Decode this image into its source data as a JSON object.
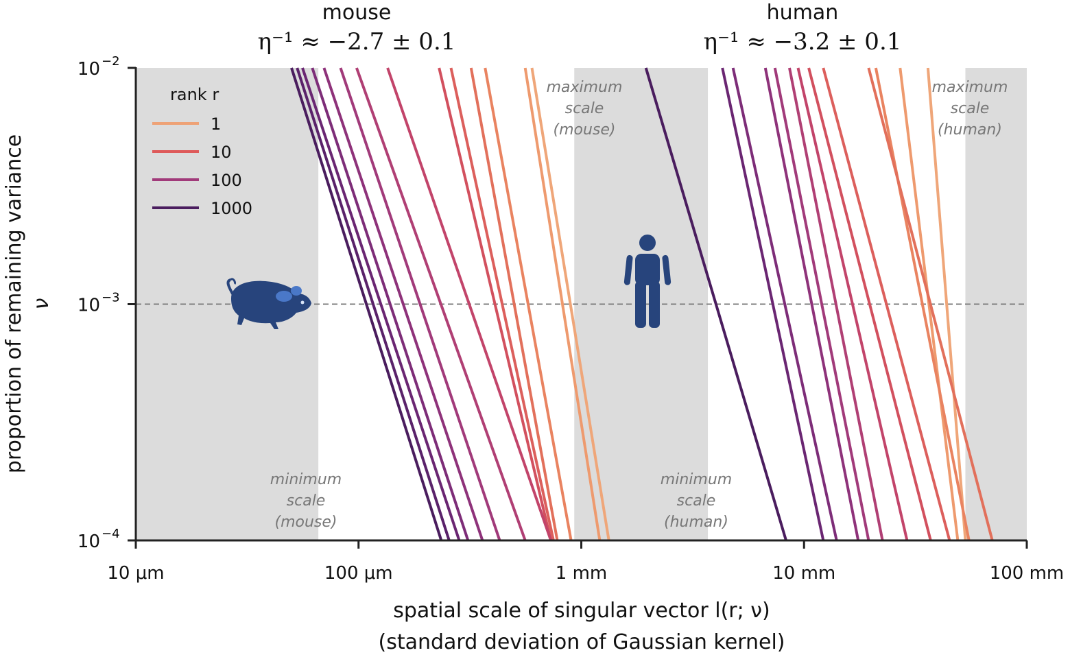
{
  "chart_data": {
    "type": "line",
    "titles": [
      {
        "species": "mouse",
        "exponent": "η⁻¹ ≈ −2.7 ± 0.1"
      },
      {
        "species": "human",
        "exponent": "η⁻¹ ≈ −3.2 ± 0.1"
      }
    ],
    "xlabel": "spatial scale of singular vector l(r; ν)",
    "xlabel_sub": "(standard deviation of Gaussian kernel)",
    "ylabel": "proportion of remaining variance",
    "ylabel_symbol": "ν",
    "xscale": "log",
    "yscale": "log",
    "xlim_mm": [
      0.01,
      100
    ],
    "ylim": [
      0.0001,
      0.01
    ],
    "x_ticks": [
      {
        "value": 0.01,
        "label": "10 μm"
      },
      {
        "value": 0.1,
        "label": "100 μm"
      },
      {
        "value": 1,
        "label": "1 mm"
      },
      {
        "value": 10,
        "label": "10 mm"
      },
      {
        "value": 100,
        "label": "100 mm"
      }
    ],
    "y_ticks": [
      {
        "value": 0.01,
        "base": "10",
        "exp": "−2"
      },
      {
        "value": 0.001,
        "base": "10",
        "exp": "−3"
      },
      {
        "value": 0.0001,
        "base": "10",
        "exp": "−4"
      }
    ],
    "reference_line": {
      "y": 0.001,
      "style": "dashed"
    },
    "shaded_regions": [
      {
        "x0": 0.01,
        "x1": 0.066,
        "lines": [
          "minimum",
          "scale",
          "(mouse)"
        ]
      },
      {
        "x0": 0.93,
        "x1": 3.7,
        "lines": [
          "maximum",
          "scale",
          "(mouse)"
        ]
      },
      {
        "x0": 0.93,
        "x1": 3.7,
        "lines": [
          "minimum",
          "scale",
          "(human)"
        ]
      },
      {
        "x0": 53,
        "x1": 100,
        "lines": [
          "maximum",
          "scale",
          "(human)"
        ]
      }
    ],
    "legend": {
      "title": "rank r",
      "placement": "top-left",
      "entries": [
        {
          "label": "1",
          "color": "#eea276"
        },
        {
          "label": "10",
          "color": "#de5a5a"
        },
        {
          "label": "100",
          "color": "#a13a7a"
        },
        {
          "label": "1000",
          "color": "#4a1d5e"
        }
      ]
    },
    "series": [
      {
        "group": "mouse",
        "rank": 1,
        "x_top": 0.6,
        "x_bottom": 1.33,
        "color": "#efa679"
      },
      {
        "group": "mouse",
        "rank": 2,
        "x_top": 0.56,
        "x_bottom": 1.21,
        "color": "#ee9a6e"
      },
      {
        "group": "mouse",
        "rank": 4,
        "x_top": 0.37,
        "x_bottom": 0.9,
        "color": "#e98360"
      },
      {
        "group": "mouse",
        "rank": 7,
        "x_top": 0.32,
        "x_bottom": 0.78,
        "color": "#e2705b"
      },
      {
        "group": "mouse",
        "rank": 10,
        "x_top": 0.26,
        "x_bottom": 0.75,
        "color": "#dc5f5c"
      },
      {
        "group": "mouse",
        "rank": 20,
        "x_top": 0.23,
        "x_bottom": 0.73,
        "color": "#d2505e"
      },
      {
        "group": "mouse",
        "rank": 40,
        "x_top": 0.135,
        "x_bottom": 0.73,
        "color": "#c2446a"
      },
      {
        "group": "mouse",
        "rank": 70,
        "x_top": 0.098,
        "x_bottom": 0.56,
        "color": "#b03f74"
      },
      {
        "group": "mouse",
        "rank": 100,
        "x_top": 0.083,
        "x_bottom": 0.43,
        "color": "#a13a7a"
      },
      {
        "group": "mouse",
        "rank": 200,
        "x_top": 0.07,
        "x_bottom": 0.36,
        "color": "#8e327a"
      },
      {
        "group": "mouse",
        "rank": 300,
        "x_top": 0.062,
        "x_bottom": 0.31,
        "color": "#7d2d78"
      },
      {
        "group": "mouse",
        "rank": 500,
        "x_top": 0.056,
        "x_bottom": 0.283,
        "color": "#6a2672"
      },
      {
        "group": "mouse",
        "rank": 700,
        "x_top": 0.053,
        "x_bottom": 0.255,
        "color": "#5a226a"
      },
      {
        "group": "mouse",
        "rank": 1000,
        "x_top": 0.05,
        "x_bottom": 0.235,
        "color": "#4a1d5e"
      },
      {
        "group": "human",
        "rank": 1,
        "x_top": 36,
        "x_bottom": 53,
        "color": "#efa679"
      },
      {
        "group": "human",
        "rank": 2,
        "x_top": 27,
        "x_bottom": 49,
        "color": "#ee9a6e"
      },
      {
        "group": "human",
        "rank": 4,
        "x_top": 21,
        "x_bottom": 55,
        "color": "#e98360"
      },
      {
        "group": "human",
        "rank": 7,
        "x_top": 19.5,
        "x_bottom": 70,
        "color": "#e2705b"
      },
      {
        "group": "human",
        "rank": 10,
        "x_top": 12.2,
        "x_bottom": 45,
        "color": "#dc5f5c"
      },
      {
        "group": "human",
        "rank": 20,
        "x_top": 10.5,
        "x_bottom": 37,
        "color": "#d2505e"
      },
      {
        "group": "human",
        "rank": 40,
        "x_top": 9.4,
        "x_bottom": 29,
        "color": "#c2446a"
      },
      {
        "group": "human",
        "rank": 70,
        "x_top": 8.6,
        "x_bottom": 22.5,
        "color": "#b03f74"
      },
      {
        "group": "human",
        "rank": 100,
        "x_top": 7.4,
        "x_bottom": 19.5,
        "color": "#a13a7a"
      },
      {
        "group": "human",
        "rank": 200,
        "x_top": 6.7,
        "x_bottom": 17.5,
        "color": "#8e327a"
      },
      {
        "group": "human",
        "rank": 300,
        "x_top": 4.8,
        "x_bottom": 14,
        "color": "#7d2d78"
      },
      {
        "group": "human",
        "rank": 500,
        "x_top": 4.3,
        "x_bottom": 12.2,
        "color": "#6a2672"
      },
      {
        "group": "human",
        "rank": 1000,
        "x_top": 1.95,
        "x_bottom": 8.3,
        "color": "#4a1d5e"
      }
    ],
    "colors": {
      "shade": "#dcdcdc",
      "icon": "#27447c",
      "reference": "#808080"
    },
    "icons": [
      "mouse-icon",
      "human-icon"
    ]
  }
}
